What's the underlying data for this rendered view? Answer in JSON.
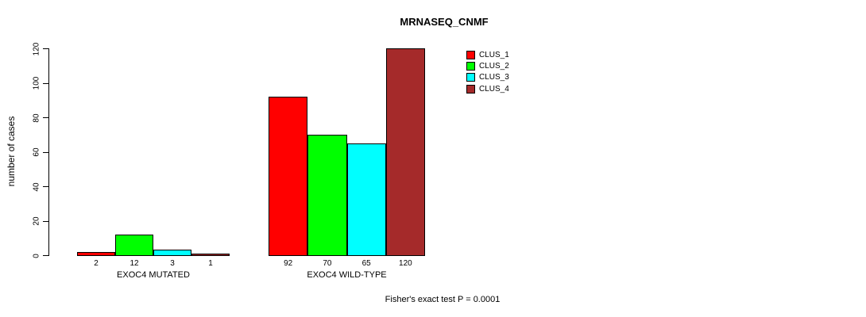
{
  "chart_data": {
    "type": "bar",
    "title": "MRNASEQ_CNMF",
    "ylabel": "number of cases",
    "ylim": [
      0,
      120
    ],
    "yticks": [
      0,
      20,
      40,
      60,
      80,
      100,
      120
    ],
    "grid": false,
    "legend_position": "top-right",
    "categories": [
      "EXOC4 MUTATED",
      "EXOC4 WILD-TYPE"
    ],
    "series": [
      {
        "name": "CLUS_1",
        "color": "#FF0000",
        "values": [
          2,
          92
        ]
      },
      {
        "name": "CLUS_2",
        "color": "#00FF00",
        "values": [
          12,
          70
        ]
      },
      {
        "name": "CLUS_3",
        "color": "#00FFFF",
        "values": [
          3,
          65
        ]
      },
      {
        "name": "CLUS_4",
        "color": "#A52A2A",
        "values": [
          1,
          120
        ]
      }
    ],
    "bar_value_labels": true,
    "annotation": "Fisher's exact test P = 0.0001",
    "colors": {
      "axis": "#000000",
      "background": "#FFFFFF",
      "text": "#000000"
    }
  }
}
